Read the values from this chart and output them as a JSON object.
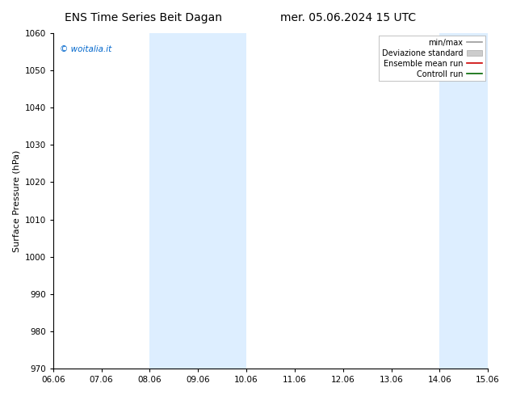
{
  "title_left": "ENS Time Series Beit Dagan",
  "title_right": "mer. 05.06.2024 15 UTC",
  "ylabel": "Surface Pressure (hPa)",
  "ylim": [
    970,
    1060
  ],
  "yticks": [
    970,
    980,
    990,
    1000,
    1010,
    1020,
    1030,
    1040,
    1050,
    1060
  ],
  "xtick_labels": [
    "06.06",
    "07.06",
    "08.06",
    "09.06",
    "10.06",
    "11.06",
    "12.06",
    "13.06",
    "14.06",
    "15.06"
  ],
  "watermark": "© woitalia.it",
  "watermark_color": "#0066cc",
  "bg_color": "#ffffff",
  "plot_bg_color": "#ffffff",
  "shaded_bands": [
    {
      "xstart": 2,
      "xend": 4,
      "color": "#ddeeff"
    },
    {
      "xstart": 8,
      "xend": 9,
      "color": "#ddeeff"
    }
  ],
  "legend_entries": [
    {
      "label": "min/max",
      "color": "#999999",
      "lw": 1.2,
      "type": "line"
    },
    {
      "label": "Deviazione standard",
      "color": "#cccccc",
      "lw": 5,
      "type": "patch"
    },
    {
      "label": "Ensemble mean run",
      "color": "#cc0000",
      "lw": 1.2,
      "type": "line"
    },
    {
      "label": "Controll run",
      "color": "#006600",
      "lw": 1.2,
      "type": "line"
    }
  ],
  "title_fontsize": 10,
  "tick_fontsize": 7.5,
  "ylabel_fontsize": 8,
  "legend_fontsize": 7
}
